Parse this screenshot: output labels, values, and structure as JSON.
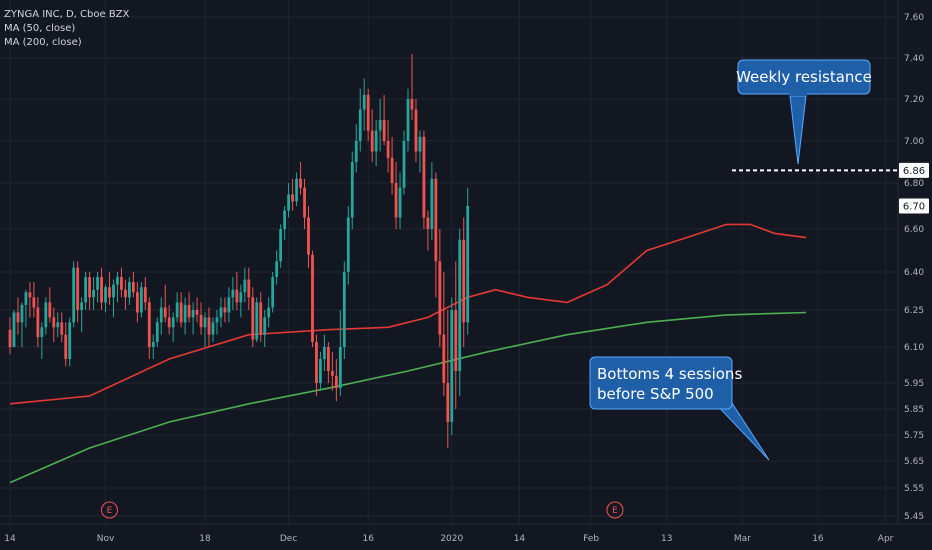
{
  "legend": {
    "symbol": "ZYNGA INC, D, Cboe BZX",
    "ma50": "MA (50, close)",
    "ma200": "MA (200, close)"
  },
  "annotations": {
    "resistance": "Weekly resistance",
    "bottoms_line1": "Bottoms 4 sessions",
    "bottoms_line2": "before S&P 500"
  },
  "price_labels": {
    "resistance": "6.86",
    "last": "6.70"
  },
  "earnings_marker": "E",
  "colors": {
    "background": "#131722",
    "up": "#26a69a",
    "down": "#ef5350",
    "ma50": "#e53935",
    "ma200": "#4caf50",
    "callout_fill": "#1f5fa8",
    "callout_border": "#5aa9ff"
  },
  "chart_data": {
    "type": "candlestick",
    "y_ticks": [
      "7.60",
      "7.40",
      "7.20",
      "7.00",
      "6.80",
      "6.60",
      "6.40",
      "6.25",
      "6.10",
      "5.95",
      "5.85",
      "5.75",
      "5.65",
      "5.55",
      "5.45"
    ],
    "y_tick_values": [
      7.6,
      7.4,
      7.2,
      7.0,
      6.8,
      6.6,
      6.4,
      6.25,
      6.1,
      5.95,
      5.85,
      5.75,
      5.65,
      5.55,
      5.45
    ],
    "x_ticks": [
      "14",
      "Nov",
      "18",
      "Dec",
      "16",
      "2020",
      "14",
      "Feb",
      "13",
      "Mar",
      "16",
      "Apr"
    ],
    "x_tick_index": [
      0,
      24,
      49,
      70,
      90,
      111,
      128,
      146,
      165,
      184,
      203,
      220
    ],
    "resistance_level": 6.86,
    "last_price": 6.7,
    "earnings_index": [
      25,
      152
    ],
    "ohlc": [
      [
        6.17,
        6.22,
        6.07,
        6.1
      ],
      [
        6.1,
        6.25,
        6.1,
        6.24
      ],
      [
        6.24,
        6.3,
        6.15,
        6.2
      ],
      [
        6.2,
        6.28,
        6.1,
        6.27
      ],
      [
        6.27,
        6.33,
        6.18,
        6.32
      ],
      [
        6.32,
        6.36,
        6.22,
        6.3
      ],
      [
        6.3,
        6.36,
        6.22,
        6.26
      ],
      [
        6.26,
        6.3,
        6.1,
        6.14
      ],
      [
        6.14,
        6.2,
        6.05,
        6.18
      ],
      [
        6.18,
        6.3,
        6.15,
        6.28
      ],
      [
        6.28,
        6.34,
        6.2,
        6.22
      ],
      [
        6.22,
        6.26,
        6.12,
        6.18
      ],
      [
        6.18,
        6.24,
        6.14,
        6.2
      ],
      [
        6.2,
        6.24,
        6.12,
        6.15
      ],
      [
        6.15,
        6.2,
        6.02,
        6.05
      ],
      [
        6.05,
        6.22,
        6.02,
        6.2
      ],
      [
        6.2,
        6.45,
        6.18,
        6.42
      ],
      [
        6.42,
        6.45,
        6.2,
        6.25
      ],
      [
        6.25,
        6.3,
        6.16,
        6.28
      ],
      [
        6.28,
        6.4,
        6.25,
        6.38
      ],
      [
        6.38,
        6.4,
        6.25,
        6.3
      ],
      [
        6.3,
        6.38,
        6.25,
        6.33
      ],
      [
        6.33,
        6.4,
        6.28,
        6.38
      ],
      [
        6.38,
        6.42,
        6.25,
        6.28
      ],
      [
        6.28,
        6.35,
        6.24,
        6.34
      ],
      [
        6.34,
        6.4,
        6.27,
        6.3
      ],
      [
        6.3,
        6.37,
        6.22,
        6.35
      ],
      [
        6.35,
        6.4,
        6.28,
        6.38
      ],
      [
        6.38,
        6.42,
        6.3,
        6.33
      ],
      [
        6.33,
        6.37,
        6.25,
        6.3
      ],
      [
        6.3,
        6.38,
        6.27,
        6.36
      ],
      [
        6.36,
        6.4,
        6.3,
        6.32
      ],
      [
        6.32,
        6.36,
        6.2,
        6.24
      ],
      [
        6.24,
        6.36,
        6.22,
        6.34
      ],
      [
        6.34,
        6.38,
        6.25,
        6.28
      ],
      [
        6.28,
        6.3,
        6.05,
        6.1
      ],
      [
        6.1,
        6.15,
        6.05,
        6.12
      ],
      [
        6.12,
        6.22,
        6.1,
        6.2
      ],
      [
        6.2,
        6.3,
        6.15,
        6.26
      ],
      [
        6.26,
        6.35,
        6.2,
        6.22
      ],
      [
        6.22,
        6.27,
        6.15,
        6.18
      ],
      [
        6.18,
        6.24,
        6.12,
        6.22
      ],
      [
        6.22,
        6.32,
        6.2,
        6.28
      ],
      [
        6.28,
        6.32,
        6.18,
        6.2
      ],
      [
        6.2,
        6.3,
        6.15,
        6.27
      ],
      [
        6.27,
        6.32,
        6.2,
        6.22
      ],
      [
        6.22,
        6.28,
        6.15,
        6.25
      ],
      [
        6.25,
        6.3,
        6.2,
        6.23
      ],
      [
        6.23,
        6.28,
        6.15,
        6.18
      ],
      [
        6.18,
        6.24,
        6.1,
        6.22
      ],
      [
        6.22,
        6.26,
        6.1,
        6.15
      ],
      [
        6.15,
        6.22,
        6.12,
        6.2
      ],
      [
        6.2,
        6.25,
        6.15,
        6.22
      ],
      [
        6.22,
        6.3,
        6.18,
        6.26
      ],
      [
        6.26,
        6.3,
        6.2,
        6.24
      ],
      [
        6.24,
        6.34,
        6.2,
        6.3
      ],
      [
        6.3,
        6.38,
        6.25,
        6.33
      ],
      [
        6.33,
        6.4,
        6.25,
        6.28
      ],
      [
        6.28,
        6.35,
        6.22,
        6.32
      ],
      [
        6.32,
        6.42,
        6.28,
        6.37
      ],
      [
        6.37,
        6.42,
        6.25,
        6.3
      ],
      [
        6.3,
        6.34,
        6.1,
        6.13
      ],
      [
        6.13,
        6.3,
        6.12,
        6.28
      ],
      [
        6.28,
        6.32,
        6.12,
        6.15
      ],
      [
        6.15,
        6.25,
        6.1,
        6.22
      ],
      [
        6.22,
        6.3,
        6.18,
        6.26
      ],
      [
        6.26,
        6.4,
        6.24,
        6.38
      ],
      [
        6.38,
        6.5,
        6.35,
        6.45
      ],
      [
        6.45,
        6.62,
        6.42,
        6.6
      ],
      [
        6.6,
        6.7,
        6.55,
        6.68
      ],
      [
        6.68,
        6.8,
        6.65,
        6.75
      ],
      [
        6.75,
        6.82,
        6.68,
        6.72
      ],
      [
        6.72,
        6.85,
        6.7,
        6.82
      ],
      [
        6.82,
        6.9,
        6.75,
        6.78
      ],
      [
        6.78,
        6.82,
        6.6,
        6.65
      ],
      [
        6.65,
        6.7,
        6.42,
        6.48
      ],
      [
        6.48,
        6.5,
        6.1,
        6.12
      ],
      [
        6.12,
        6.15,
        5.9,
        5.95
      ],
      [
        5.95,
        6.08,
        5.92,
        6.05
      ],
      [
        6.05,
        6.15,
        6.0,
        6.1
      ],
      [
        6.1,
        6.12,
        5.95,
        6.0
      ],
      [
        6.0,
        6.08,
        5.92,
        5.98
      ],
      [
        5.98,
        6.05,
        5.88,
        5.93
      ],
      [
        5.93,
        6.25,
        5.9,
        6.1
      ],
      [
        6.1,
        6.45,
        6.05,
        6.4
      ],
      [
        6.4,
        6.7,
        6.35,
        6.65
      ],
      [
        6.65,
        6.95,
        6.6,
        6.9
      ],
      [
        6.9,
        7.08,
        6.85,
        7.0
      ],
      [
        7.0,
        7.25,
        6.95,
        7.15
      ],
      [
        7.15,
        7.3,
        7.05,
        7.22
      ],
      [
        7.22,
        7.25,
        7.0,
        7.05
      ],
      [
        7.05,
        7.15,
        6.9,
        6.95
      ],
      [
        6.95,
        7.1,
        6.88,
        7.05
      ],
      [
        7.05,
        7.2,
        6.95,
        7.1
      ],
      [
        7.1,
        7.22,
        6.98,
        7.0
      ],
      [
        7.0,
        7.1,
        6.85,
        6.92
      ],
      [
        6.92,
        7.02,
        6.75,
        6.8
      ],
      [
        6.8,
        6.9,
        6.6,
        6.65
      ],
      [
        6.65,
        6.85,
        6.6,
        6.78
      ],
      [
        6.78,
        7.05,
        6.75,
        7.0
      ],
      [
        7.0,
        7.25,
        6.95,
        7.2
      ],
      [
        7.2,
        7.42,
        7.1,
        7.15
      ],
      [
        7.15,
        7.2,
        6.9,
        6.95
      ],
      [
        6.95,
        7.05,
        6.85,
        7.02
      ],
      [
        7.02,
        7.05,
        6.6,
        6.65
      ],
      [
        6.65,
        6.68,
        6.5,
        6.6
      ],
      [
        6.6,
        6.9,
        6.55,
        6.82
      ],
      [
        6.82,
        6.85,
        6.3,
        6.45
      ],
      [
        6.45,
        6.6,
        6.1,
        6.15
      ],
      [
        6.15,
        6.4,
        5.9,
        5.95
      ],
      [
        5.95,
        6.25,
        5.7,
        5.8
      ],
      [
        5.8,
        6.3,
        5.75,
        6.25
      ],
      [
        6.25,
        6.45,
        5.85,
        6.0
      ],
      [
        6.0,
        6.6,
        5.9,
        6.55
      ],
      [
        6.55,
        6.65,
        6.1,
        6.2
      ],
      [
        6.2,
        6.78,
        6.15,
        6.7
      ]
    ],
    "ma50": [
      [
        0,
        5.87
      ],
      [
        20,
        5.9
      ],
      [
        40,
        6.05
      ],
      [
        60,
        6.15
      ],
      [
        80,
        6.17
      ],
      [
        95,
        6.18
      ],
      [
        105,
        6.22
      ],
      [
        115,
        6.3
      ],
      [
        122,
        6.33
      ],
      [
        130,
        6.3
      ],
      [
        140,
        6.28
      ],
      [
        150,
        6.35
      ],
      [
        160,
        6.5
      ],
      [
        170,
        6.56
      ],
      [
        180,
        6.62
      ],
      [
        186,
        6.62
      ],
      [
        192,
        6.58
      ],
      [
        200,
        6.56
      ]
    ],
    "ma200": [
      [
        0,
        5.57
      ],
      [
        20,
        5.7
      ],
      [
        40,
        5.8
      ],
      [
        60,
        5.87
      ],
      [
        80,
        5.93
      ],
      [
        100,
        6.0
      ],
      [
        120,
        6.08
      ],
      [
        140,
        6.15
      ],
      [
        160,
        6.2
      ],
      [
        180,
        6.23
      ],
      [
        200,
        6.24
      ]
    ]
  }
}
